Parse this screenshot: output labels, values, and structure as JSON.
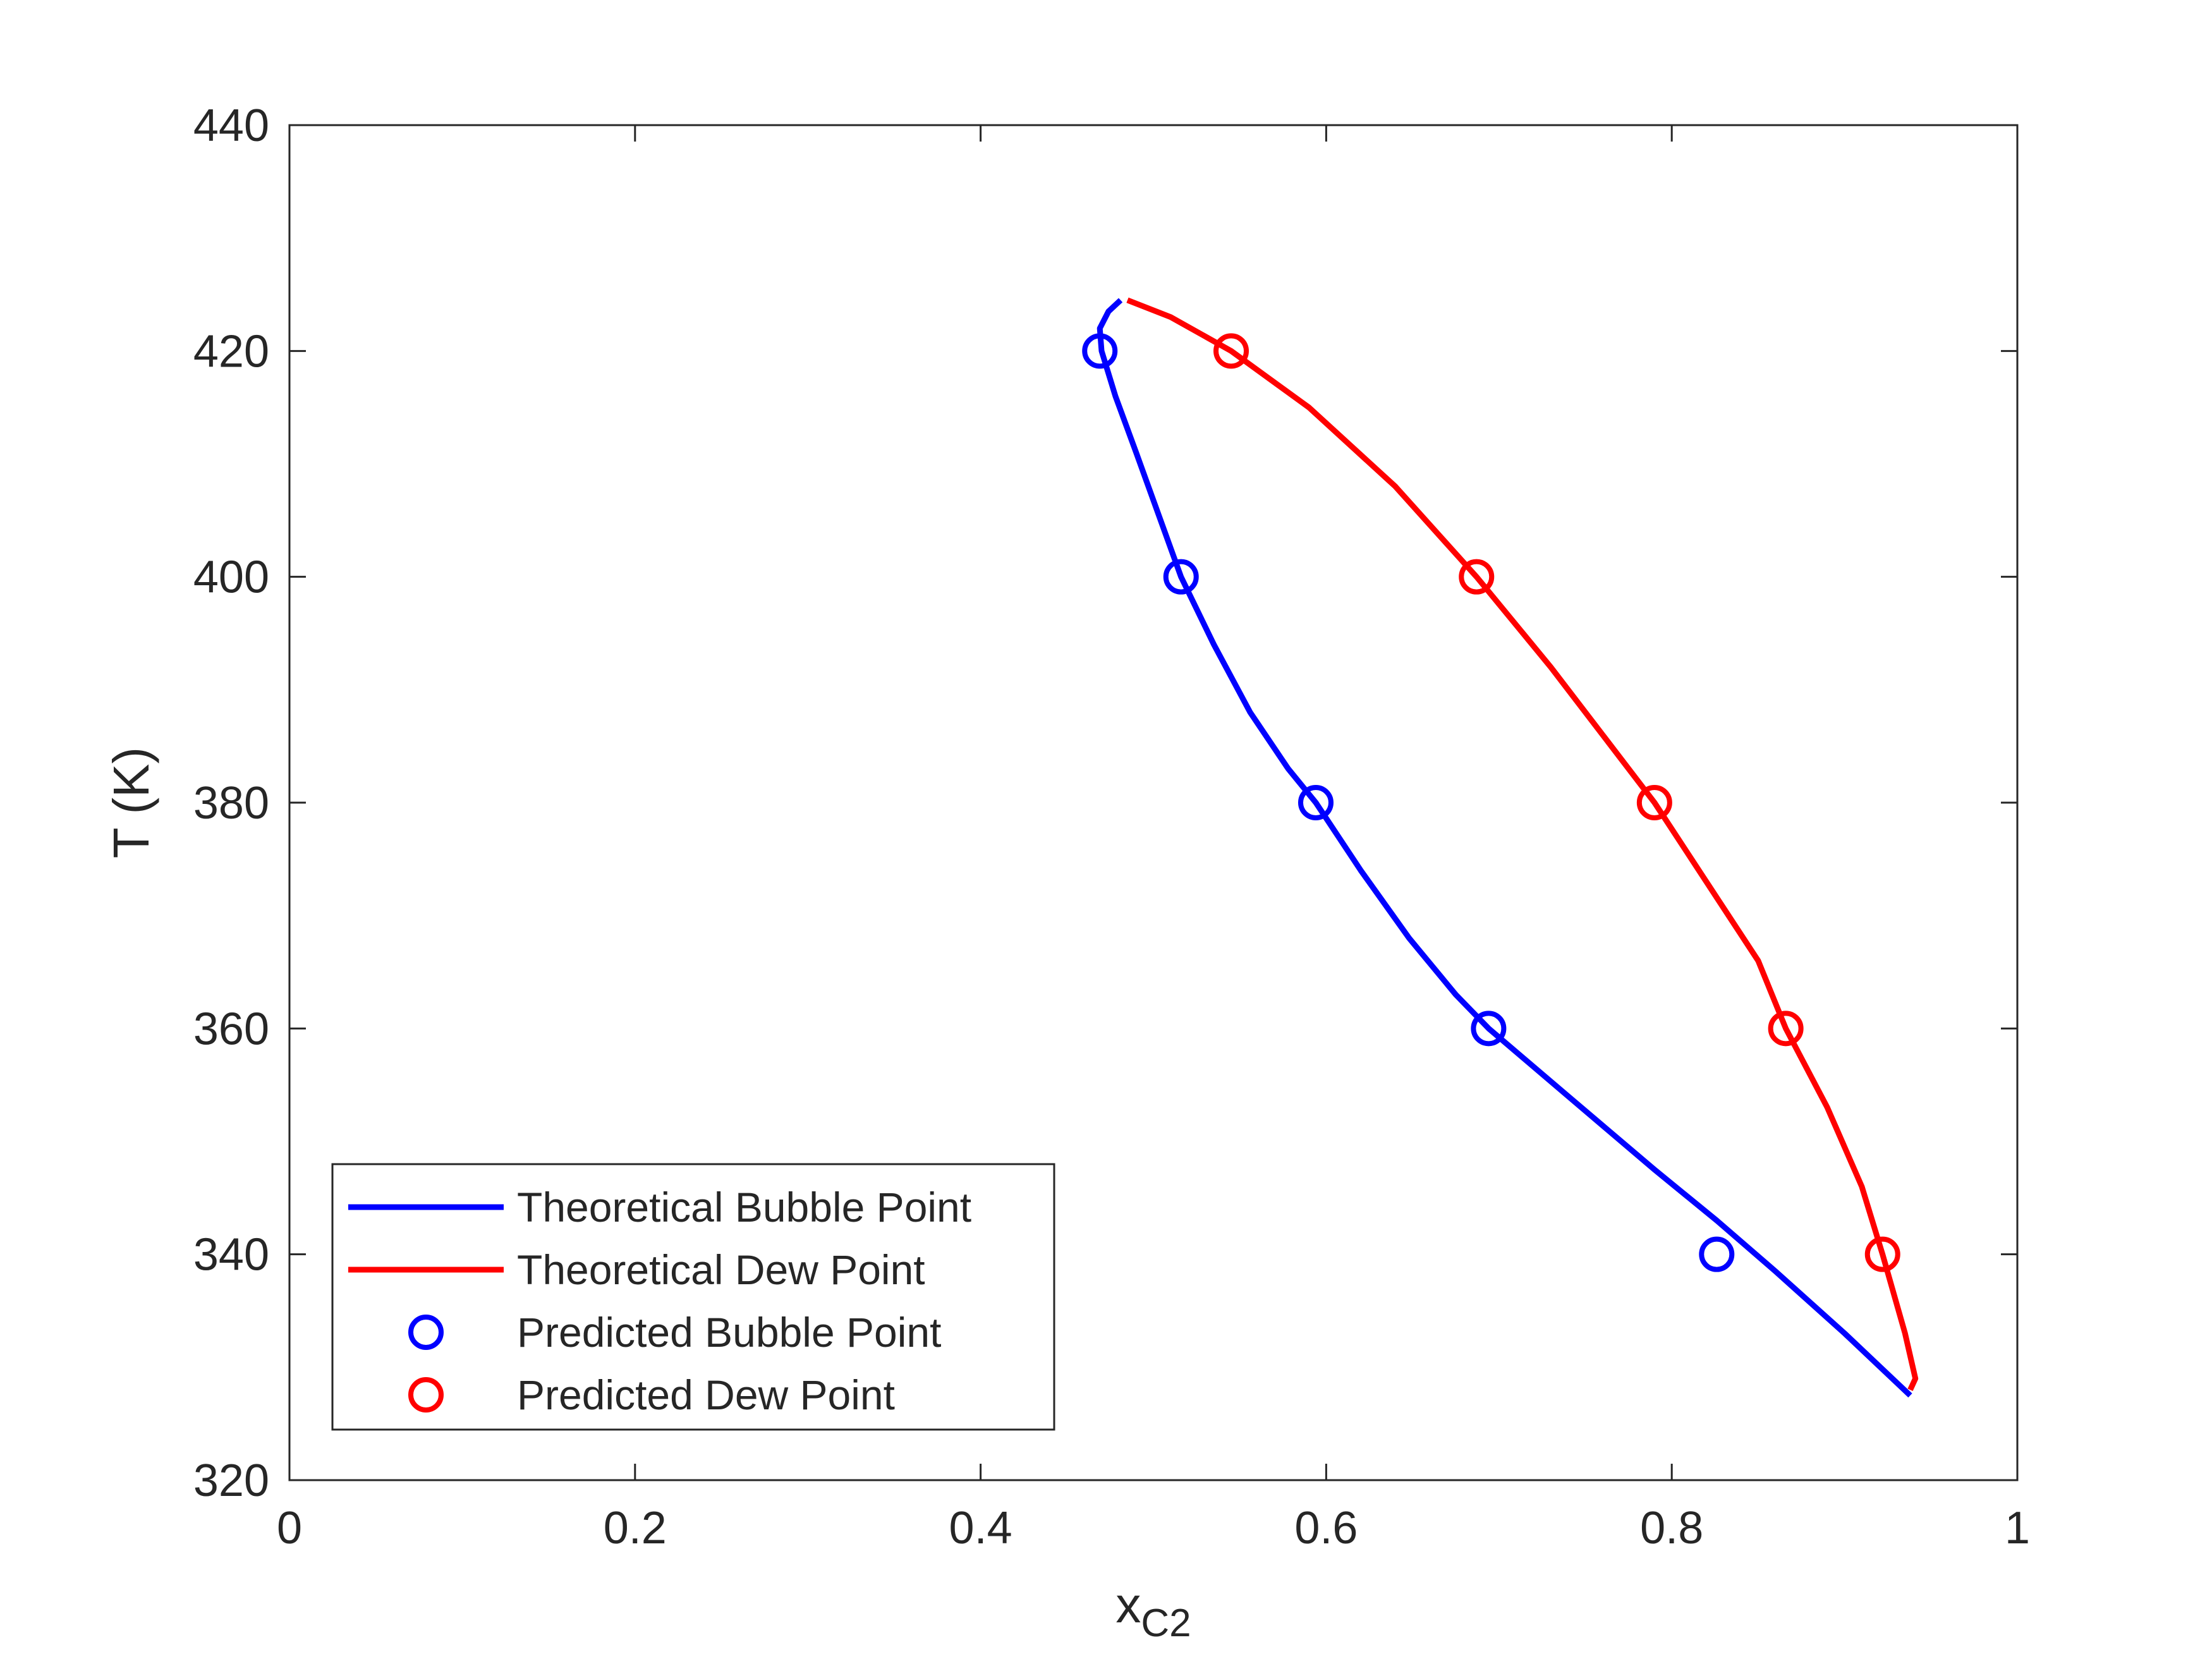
{
  "chart_data": {
    "type": "line",
    "title": "",
    "xlabel": "x",
    "xlabel_sub": "C2",
    "ylabel": "T (K)",
    "xlim": [
      0,
      1
    ],
    "ylim": [
      320,
      440
    ],
    "xticks": [
      0,
      0.2,
      0.4,
      0.6,
      0.8,
      1
    ],
    "xtick_labels": [
      "0",
      "0.2",
      "0.4",
      "0.6",
      "0.8",
      "1"
    ],
    "yticks": [
      320,
      340,
      360,
      380,
      400,
      420,
      440
    ],
    "ytick_labels": [
      "320",
      "340",
      "360",
      "380",
      "400",
      "420",
      "440"
    ],
    "grid": false,
    "legend_position": "bottom-left",
    "series": [
      {
        "name": "Theoretical Bubble Point",
        "kind": "line",
        "color": "#0000ff",
        "x": [
          0.481,
          0.474,
          0.469,
          0.47,
          0.478,
          0.49,
          0.503,
          0.516,
          0.535,
          0.556,
          0.578,
          0.594,
          0.62,
          0.648,
          0.675,
          0.694,
          0.74,
          0.79,
          0.826,
          0.86,
          0.9,
          0.938
        ],
        "y": [
          424.5,
          423.5,
          422,
          420,
          416,
          411,
          405.5,
          400,
          394,
          388,
          383,
          380,
          374,
          368,
          363,
          360,
          354,
          347.5,
          343,
          338.5,
          333,
          327.5
        ]
      },
      {
        "name": "Theoretical Dew Point",
        "kind": "line",
        "color": "#ff0000",
        "x": [
          0.485,
          0.51,
          0.545,
          0.59,
          0.64,
          0.687,
          0.73,
          0.77,
          0.79,
          0.82,
          0.85,
          0.866,
          0.89,
          0.91,
          0.922,
          0.935,
          0.941,
          0.938
        ],
        "y": [
          424.5,
          423,
          420,
          415,
          408,
          400,
          392,
          384,
          380,
          373,
          366,
          360,
          353,
          346,
          340,
          333,
          329,
          328
        ]
      },
      {
        "name": "Predicted Bubble Point",
        "kind": "scatter",
        "marker": "circle",
        "color": "#0000ff",
        "x": [
          0.469,
          0.516,
          0.594,
          0.694,
          0.826
        ],
        "y": [
          420,
          400,
          380,
          360,
          340
        ]
      },
      {
        "name": "Predicted Dew Point",
        "kind": "scatter",
        "marker": "circle",
        "color": "#ff0000",
        "x": [
          0.545,
          0.687,
          0.79,
          0.866,
          0.922
        ],
        "y": [
          420,
          400,
          380,
          360,
          340
        ]
      }
    ]
  }
}
